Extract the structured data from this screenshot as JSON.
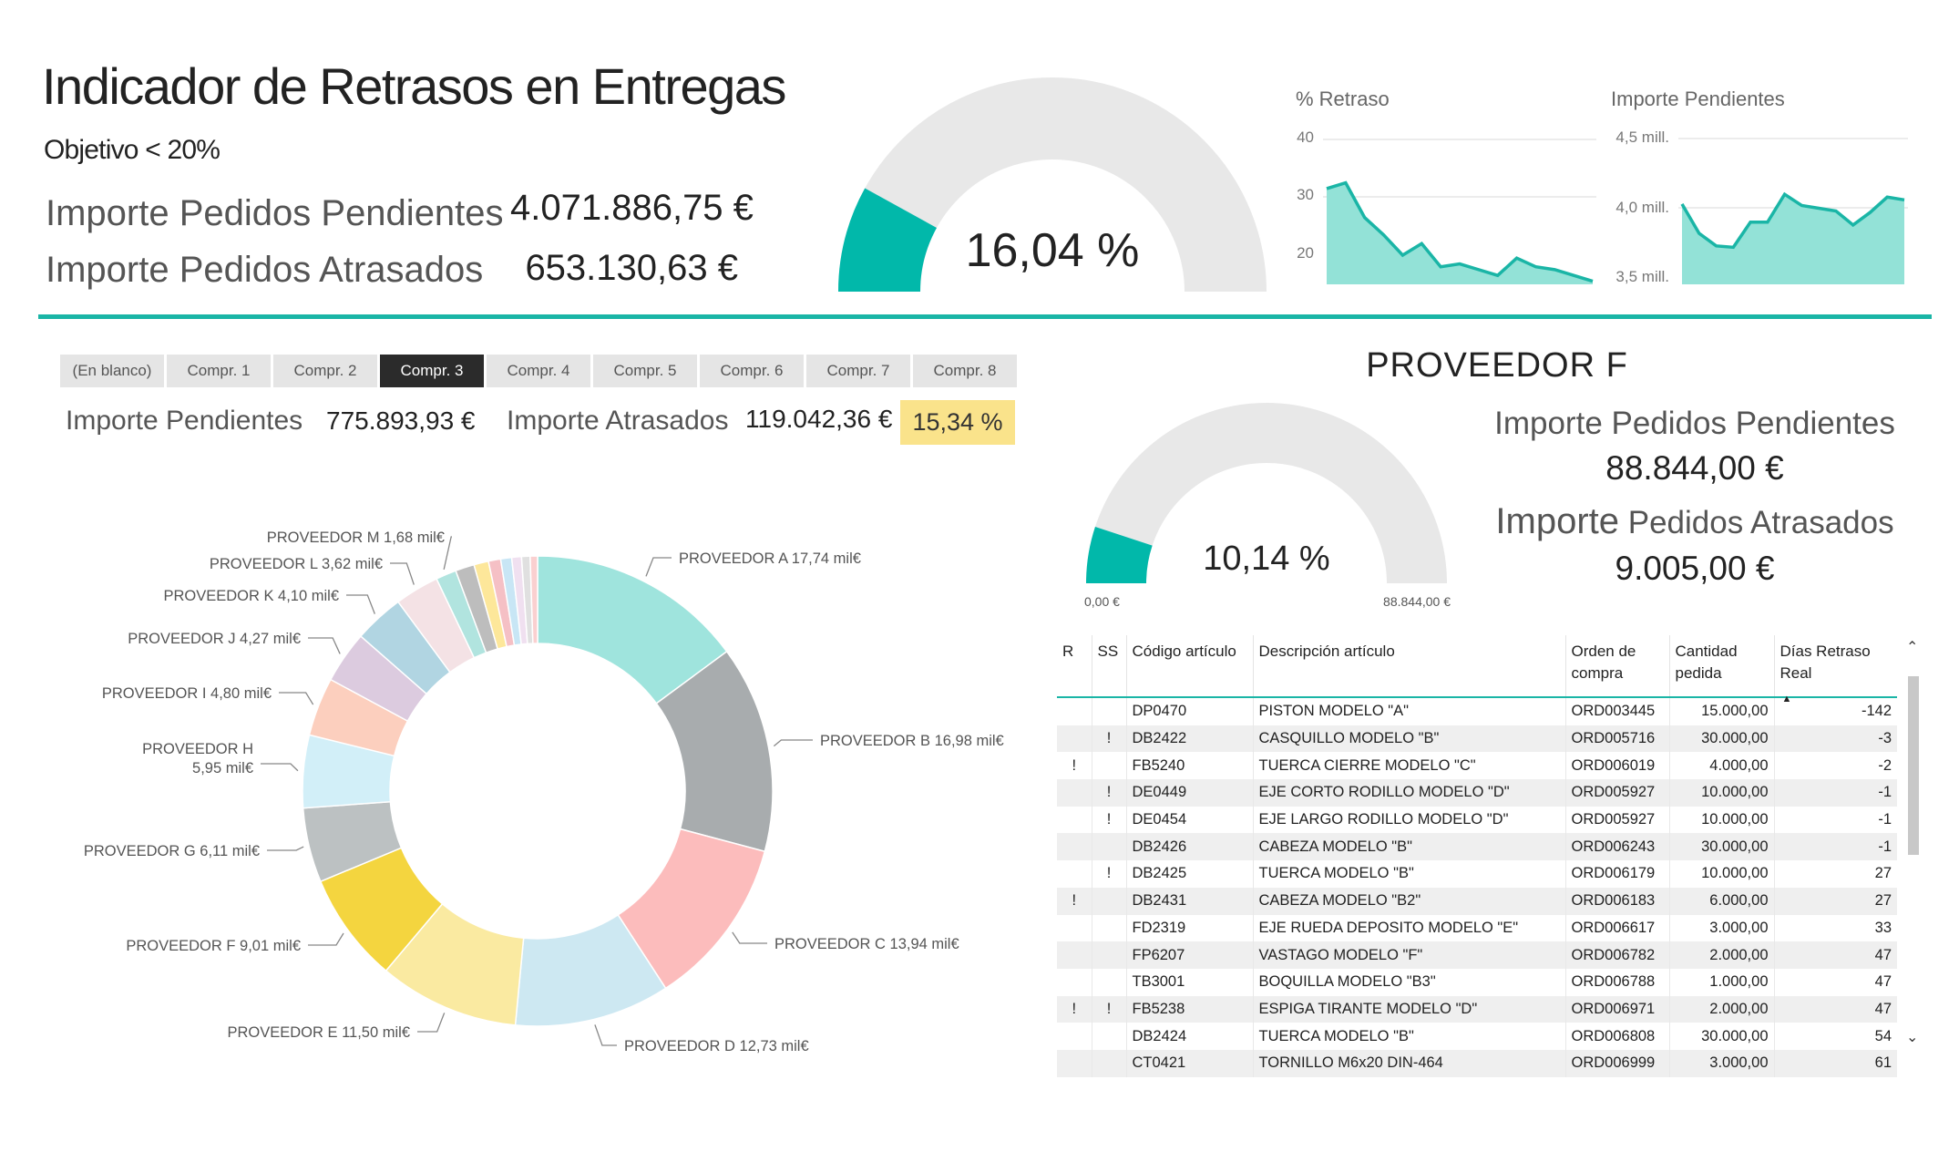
{
  "header": {
    "title": "Indicador de Retrasos en Entregas",
    "objective": "Objetivo < 20%",
    "kpis": [
      {
        "label": "Importe Pedidos Pendientes",
        "value": "4.071.886,75 €"
      },
      {
        "label": "Importe Pedidos Atrasados",
        "value": "653.130,63 €"
      }
    ]
  },
  "main_gauge": {
    "value_text": "16,04 %",
    "fraction": 0.1604,
    "fill": "#01b8aa",
    "track": "#e8e8e8"
  },
  "spark_retraso": {
    "title": "% Retraso",
    "ticks": [
      "40",
      "30",
      "20"
    ],
    "tick_values": [
      40,
      30,
      20
    ],
    "color": "#1ab5a6",
    "area": "#93e2d7"
  },
  "spark_importe": {
    "title": "Importe Pendientes",
    "ticks": [
      "4,5 mill.",
      "4,0 mill.",
      "3,5 mill."
    ],
    "tick_values": [
      4.5,
      4.0,
      3.5
    ],
    "color": "#1ab5a6",
    "area": "#93e2d7"
  },
  "slicer": {
    "items": [
      "(En blanco)",
      "Compr. 1",
      "Compr. 2",
      "Compr. 3",
      "Compr. 4",
      "Compr. 5",
      "Compr. 6",
      "Compr. 7",
      "Compr. 8"
    ],
    "selected": "Compr. 3"
  },
  "buyer_kpis": {
    "pending_label": "Importe Pendientes",
    "pending_value": "775.893,93 €",
    "late_label": "Importe Atrasados",
    "late_value": "119.042,36 €",
    "pct": "15,34 %",
    "pct_color": "#fae38b"
  },
  "supplier": {
    "title": "PROVEEDOR F",
    "gauge_value_text": "10,14 %",
    "gauge_fraction": 0.1014,
    "gauge_min": "0,00 €",
    "gauge_max": "88.844,00 €",
    "pending_label": "Importe Pedidos Pendientes",
    "pending_value": "88.844,00 €",
    "late_label_a": "Importe",
    "late_label_b": "Pedidos Atrasados",
    "late_value": "9.005,00 €"
  },
  "table": {
    "columns": [
      "R",
      "SS",
      "Código artículo",
      "Descripción artículo",
      "Orden de compra",
      "Cantidad pedida",
      "Días Retraso Real"
    ],
    "sort_indicator": "▲",
    "rows": [
      [
        "",
        "",
        "DP0470",
        "PISTON MODELO \"A\"",
        "ORD003445",
        "15.000,00",
        "-142"
      ],
      [
        "",
        "!",
        "DB2422",
        "CASQUILLO MODELO \"B\"",
        "ORD005716",
        "30.000,00",
        "-3"
      ],
      [
        "!",
        "",
        "FB5240",
        "TUERCA CIERRE MODELO \"C\"",
        "ORD006019",
        "4.000,00",
        "-2"
      ],
      [
        "",
        "!",
        "DE0449",
        "EJE CORTO RODILLO MODELO \"D\"",
        "ORD005927",
        "10.000,00",
        "-1"
      ],
      [
        "",
        "!",
        "DE0454",
        "EJE LARGO RODILLO MODELO \"D\"",
        "ORD005927",
        "10.000,00",
        "-1"
      ],
      [
        "",
        "",
        "DB2426",
        "CABEZA MODELO \"B\"",
        "ORD006243",
        "30.000,00",
        "-1"
      ],
      [
        "",
        "!",
        "DB2425",
        "TUERCA MODELO \"B\"",
        "ORD006179",
        "10.000,00",
        "27"
      ],
      [
        "!",
        "",
        "DB2431",
        "CABEZA MODELO \"B2\"",
        "ORD006183",
        "6.000,00",
        "27"
      ],
      [
        "",
        "",
        "FD2319",
        "EJE RUEDA DEPOSITO MODELO \"E\"",
        "ORD006617",
        "3.000,00",
        "33"
      ],
      [
        "",
        "",
        "FP6207",
        "VASTAGO MODELO \"F\"",
        "ORD006782",
        "2.000,00",
        "47"
      ],
      [
        "",
        "",
        "TB3001",
        "BOQUILLA MODELO \"B3\"",
        "ORD006788",
        "1.000,00",
        "47"
      ],
      [
        "!",
        "!",
        "FB5238",
        "ESPIGA TIRANTE MODELO \"D\"",
        "ORD006971",
        "2.000,00",
        "47"
      ],
      [
        "",
        "",
        "DB2424",
        "TUERCA MODELO \"B\"",
        "ORD006808",
        "30.000,00",
        "54"
      ],
      [
        "",
        "",
        "CT0421",
        "TORNILLO M6x20 DIN-464",
        "ORD006999",
        "3.000,00",
        "61"
      ]
    ]
  },
  "chart_data": [
    {
      "type": "line",
      "chart": "% Retraso",
      "ylim": [
        15,
        40
      ],
      "series": [
        {
          "values": [
            31.5,
            32.5,
            26.5,
            23.5,
            20.0,
            22.0,
            18.0,
            18.5,
            17.5,
            16.5,
            19.5,
            18.0,
            17.5,
            16.5,
            15.5
          ]
        }
      ]
    },
    {
      "type": "line",
      "chart": "Importe Pendientes",
      "ylim": [
        3.5,
        4.5
      ],
      "series": [
        {
          "values": [
            4.03,
            3.82,
            3.73,
            3.72,
            3.9,
            3.9,
            4.1,
            4.02,
            4.0,
            3.98,
            3.88,
            3.97,
            4.08,
            4.06
          ]
        }
      ]
    },
    {
      "type": "pie",
      "chart": "donut",
      "categories": [
        "PROVEEDOR A",
        "PROVEEDOR B",
        "PROVEEDOR C",
        "PROVEEDOR D",
        "PROVEEDOR E",
        "PROVEEDOR F",
        "PROVEEDOR G",
        "PROVEEDOR H",
        "PROVEEDOR I",
        "PROVEEDOR J",
        "PROVEEDOR K",
        "PROVEEDOR L",
        "PROVEEDOR M",
        "",
        "",
        "",
        "",
        "",
        "",
        ""
      ],
      "values": [
        17.74,
        16.98,
        13.94,
        12.73,
        11.5,
        9.01,
        6.11,
        5.95,
        4.8,
        4.27,
        4.1,
        3.62,
        1.68,
        1.55,
        1.2,
        1.0,
        0.9,
        0.8,
        0.7,
        0.6
      ],
      "labels": [
        "PROVEEDOR A 17,74 mil€",
        "PROVEEDOR B 16,98 mil€",
        "PROVEEDOR C 13,94 mil€",
        "PROVEEDOR D 12,73 mil€",
        "PROVEEDOR E 11,50 mil€",
        "PROVEEDOR F 9,01 mil€",
        "PROVEEDOR G 6,11 mil€",
        "PROVEEDOR H 5,95 mil€",
        "PROVEEDOR I 4,80 mil€",
        "PROVEEDOR J 4,27 mil€",
        "PROVEEDOR K 4,10 mil€",
        "PROVEEDOR L 3,62 mil€",
        "PROVEEDOR M 1,68 mil€"
      ],
      "colors": [
        "#9fe4dd",
        "#a8acae",
        "#fcbcbc",
        "#cde8f2",
        "#faeaa1",
        "#f4d53f",
        "#bcc1c2",
        "#d2eff8",
        "#fccfbe",
        "#dccbdf",
        "#b1d5e2",
        "#f4e2e5",
        "#b1e4df",
        "#bdbdbd",
        "#fde79a",
        "#f5c0c5",
        "#c8e6f5",
        "#f0e0f0",
        "#e0e0e0",
        "#fad0d0"
      ]
    }
  ]
}
